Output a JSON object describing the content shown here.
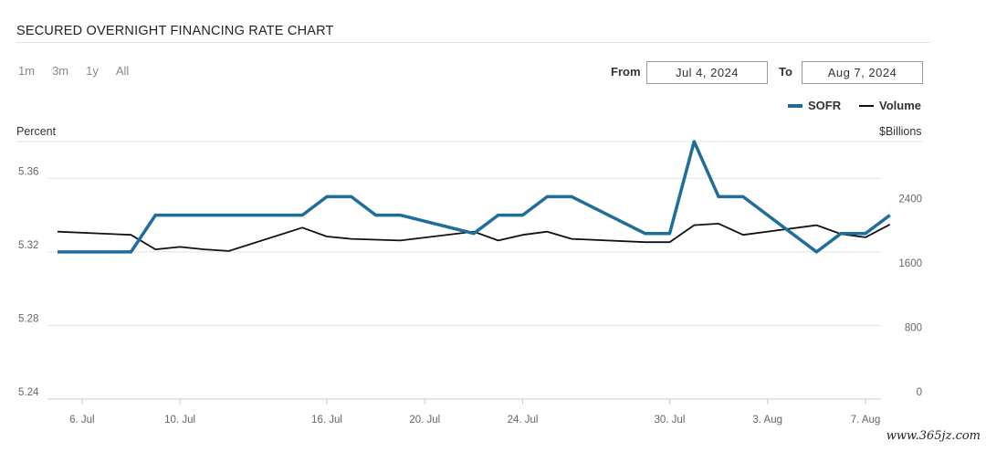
{
  "header": {
    "title": "SECURED OVERNIGHT FINANCING RATE CHART"
  },
  "ranges": [
    "1m",
    "3m",
    "1y",
    "All"
  ],
  "date_range": {
    "from_label": "From",
    "from_value": "Jul 4, 2024",
    "to_label": "To",
    "to_value": "Aug 7, 2024"
  },
  "watermark": "www.365jz.com",
  "colors": {
    "sofr": "#1f6e99",
    "volume": "#111111",
    "grid": "#dde3ea"
  },
  "chart_data": {
    "type": "line",
    "left_axis_label": "Percent",
    "right_axis_label": "$Billions",
    "ylim_left": [
      5.24,
      5.38
    ],
    "yticks_left": [
      "5.24",
      "5.28",
      "5.32",
      "5.36"
    ],
    "ylim_right": [
      0,
      3200
    ],
    "yticks_right": [
      "0",
      "800",
      "1600",
      "2400"
    ],
    "xlim": [
      "2024-07-05",
      "2024-08-07"
    ],
    "xtick_labels": [
      {
        "date": "2024-07-06",
        "label": "6. Jul"
      },
      {
        "date": "2024-07-10",
        "label": "10. Jul"
      },
      {
        "date": "2024-07-16",
        "label": "16. Jul"
      },
      {
        "date": "2024-07-20",
        "label": "20. Jul"
      },
      {
        "date": "2024-07-24",
        "label": "24. Jul"
      },
      {
        "date": "2024-07-30",
        "label": "30. Jul"
      },
      {
        "date": "2024-08-03",
        "label": "3. Aug"
      },
      {
        "date": "2024-08-07",
        "label": "7. Aug"
      }
    ],
    "x": [
      "2024-07-05",
      "2024-07-08",
      "2024-07-09",
      "2024-07-10",
      "2024-07-11",
      "2024-07-12",
      "2024-07-15",
      "2024-07-16",
      "2024-07-17",
      "2024-07-18",
      "2024-07-19",
      "2024-07-22",
      "2024-07-23",
      "2024-07-24",
      "2024-07-25",
      "2024-07-26",
      "2024-07-29",
      "2024-07-30",
      "2024-07-31",
      "2024-08-01",
      "2024-08-02",
      "2024-08-05",
      "2024-08-06",
      "2024-08-07",
      "2024-08-08"
    ],
    "series": [
      {
        "name": "SOFR",
        "axis": "left",
        "values": [
          5.32,
          5.32,
          5.34,
          5.34,
          5.34,
          5.34,
          5.34,
          5.35,
          5.35,
          5.34,
          5.34,
          5.33,
          5.34,
          5.34,
          5.35,
          5.35,
          5.33,
          5.33,
          5.38,
          5.35,
          5.35,
          5.32,
          5.33,
          5.33,
          5.34
        ]
      },
      {
        "name": "Volume",
        "axis": "right",
        "values": [
          2080,
          2040,
          1860,
          1890,
          1860,
          1840,
          2130,
          2020,
          1990,
          1980,
          1970,
          2080,
          1970,
          2040,
          2080,
          1990,
          1950,
          1950,
          2160,
          2180,
          2040,
          2160,
          2050,
          2010,
          2170
        ]
      }
    ],
    "legend_position": "top-right",
    "grid": true
  }
}
